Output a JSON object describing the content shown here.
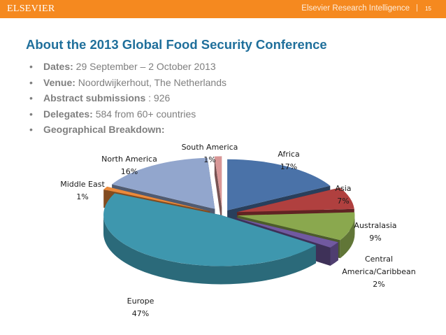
{
  "header": {
    "logo": "ELSEVIER",
    "brand": "Elsevier Research Intelligence",
    "separator": "|",
    "page_number": "15"
  },
  "slide": {
    "title": "About the 2013 Global Food Security Conference",
    "bullets": [
      {
        "label": "Dates:",
        "value": " 29 September – 2 October 2013"
      },
      {
        "label": "Venue:",
        "value": " Noordwijkerhout, The Netherlands"
      },
      {
        "label": "Abstract submissions",
        "value": " : 926"
      },
      {
        "label": "Delegates:",
        "value": " 584 from 60+ countries"
      },
      {
        "label": "Geographical Breakdown:",
        "value": ""
      }
    ]
  },
  "chart_data": {
    "type": "pie",
    "title": "",
    "categories": [
      "Africa",
      "Asia",
      "Australasia",
      "Central America/Caribbean",
      "Europe",
      "Middle East",
      "North America",
      "South America"
    ],
    "values": [
      17,
      7,
      9,
      2,
      47,
      1,
      16,
      1
    ],
    "value_labels": [
      "17%",
      "7%",
      "9%",
      "2%",
      "47%",
      "1%",
      "16%",
      "1%"
    ],
    "label_lines": [
      [
        "Africa"
      ],
      [
        "Asia"
      ],
      [
        "Australasia"
      ],
      [
        "Central",
        "America/Caribbean"
      ],
      [
        "Europe"
      ],
      [
        "Middle East"
      ],
      [
        "North America"
      ],
      [
        "South America"
      ]
    ],
    "colors": [
      "#4a72a8",
      "#b0403f",
      "#8aa84e",
      "#7159a0",
      "#3e97ae",
      "#ec8a3b",
      "#92a6cd",
      "#d89696"
    ],
    "style": "3d exploded pie",
    "legend": "none"
  }
}
